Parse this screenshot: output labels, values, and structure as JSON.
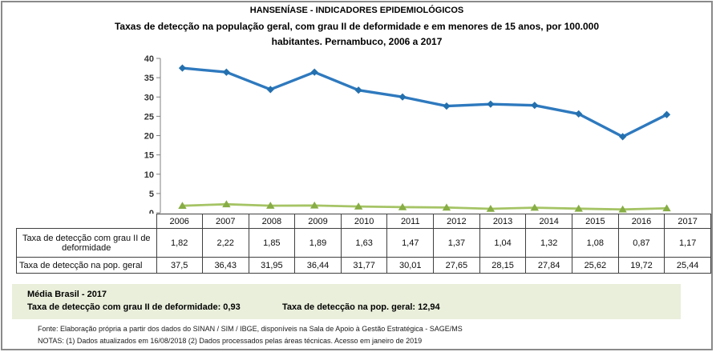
{
  "page": {
    "border_color": "#8a8a8a",
    "background": "#ffffff"
  },
  "header": {
    "title": "HANSENÍASE - INDICADORES EPIDEMIOLÓGICOS",
    "subtitle_line1": "Taxas de detecção na população geral, com grau II de deformidade e em menores de 15 anos, por 100.000",
    "subtitle_line2": "habitantes. Pernambuco, 2006 a 2017"
  },
  "chart_data": {
    "type": "line",
    "categories": [
      "2006",
      "2007",
      "2008",
      "2009",
      "2010",
      "2011",
      "2012",
      "2013",
      "2014",
      "2015",
      "2016",
      "2017"
    ],
    "series": [
      {
        "name": "Taxa de detecção na pop. geral",
        "line_color": "#2e79be",
        "marker": "diamond",
        "marker_color": "#2470ae",
        "values": [
          37.5,
          36.43,
          31.95,
          36.44,
          31.77,
          30.01,
          27.65,
          28.15,
          27.84,
          25.62,
          19.72,
          25.44
        ]
      },
      {
        "name": "Taxa de detecção com grau II de deformidade",
        "line_color": "#a5c465",
        "marker": "triangle",
        "marker_color": "#87ad45",
        "values": [
          1.82,
          2.22,
          1.85,
          1.89,
          1.63,
          1.47,
          1.37,
          1.04,
          1.32,
          1.08,
          0.87,
          1.17
        ]
      }
    ],
    "ylim": [
      0,
      40
    ],
    "yticks": [
      0,
      5,
      10,
      15,
      20,
      25,
      30,
      35,
      40
    ],
    "grid": false,
    "legend_position": "none"
  },
  "table": {
    "rows": [
      {
        "label": "Taxa de detecção com grau II de deformidade",
        "values": [
          "1,82",
          "2,22",
          "1,85",
          "1,89",
          "1,63",
          "1,47",
          "1,37",
          "1,04",
          "1,32",
          "1,08",
          "0,87",
          "1,17"
        ]
      },
      {
        "label": "Taxa de detecção na pop. geral",
        "values": [
          "37,5",
          "36,43",
          "31,95",
          "36,44",
          "31,77",
          "30,01",
          "27,65",
          "28,15",
          "27,84",
          "25,62",
          "19,72",
          "25,44"
        ]
      }
    ]
  },
  "summary_box": {
    "title": "Média Brasil - 2017",
    "grau2": "Taxa de detecção com grau II de deformidade: 0,93",
    "geral": "Taxa de detecção na pop. geral: 12,94",
    "background": "#e9efdb"
  },
  "footer": {
    "fonte": "Fonte:  Elaboração própria a partir dos dados do  SINAN / SIM / IBGE, disponíveis na Sala de Apoio à Gestão Estratégica - SAGE/MS",
    "notas": "NOTAS: (1) Dados atualizados em 16/08/2018 (2) Dados processados pelas áreas técnicas. Acesso em janeiro de 2019"
  }
}
